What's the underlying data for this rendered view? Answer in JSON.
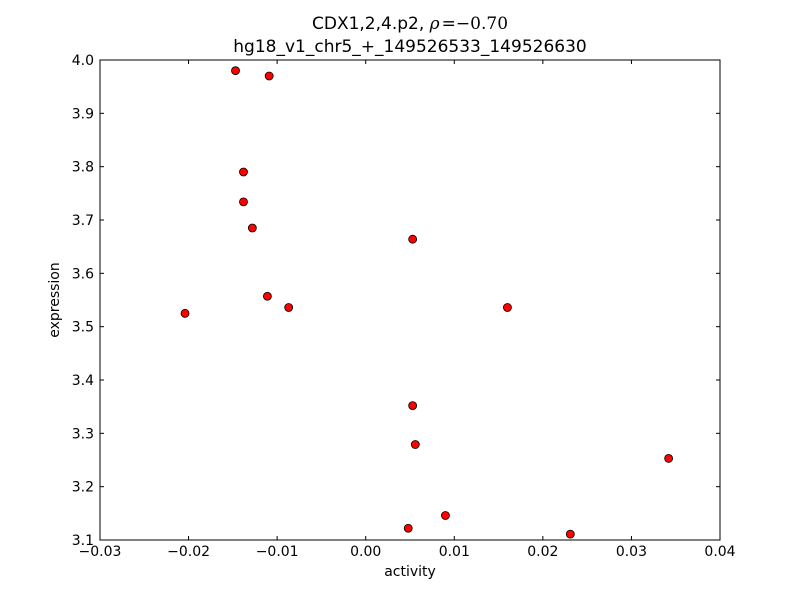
{
  "chart_data": {
    "type": "scatter",
    "title": "CDX1,2,4.p2, ρ = −0.70",
    "title_line1_prefix": "CDX1,2,4.p2, ",
    "title_line1_rho": "ρ",
    "title_line1_value": "=−0.70",
    "subtitle": "hg18_v1_chr5_+_149526533_149526630",
    "xlabel": "activity",
    "ylabel": "expression",
    "xlim": [
      -0.03,
      0.04
    ],
    "ylim": [
      3.1,
      4.0
    ],
    "xticks": [
      -0.03,
      -0.02,
      -0.01,
      0.0,
      0.01,
      0.02,
      0.03,
      0.04
    ],
    "xtick_labels": [
      "−0.03",
      "−0.02",
      "−0.01",
      "0.00",
      "0.01",
      "0.02",
      "0.03",
      "0.04"
    ],
    "yticks": [
      3.1,
      3.2,
      3.3,
      3.4,
      3.5,
      3.6,
      3.7,
      3.8,
      3.9,
      4.0
    ],
    "ytick_labels": [
      "3.1",
      "3.2",
      "3.3",
      "3.4",
      "3.5",
      "3.6",
      "3.7",
      "3.8",
      "3.9",
      "4.0"
    ],
    "grid": false,
    "marker_color": "#ff0000",
    "marker_edge_color": "#000000",
    "points": [
      {
        "x": -0.0147,
        "y": 3.98
      },
      {
        "x": -0.0109,
        "y": 3.97
      },
      {
        "x": -0.0138,
        "y": 3.79
      },
      {
        "x": -0.0138,
        "y": 3.734
      },
      {
        "x": -0.0128,
        "y": 3.685
      },
      {
        "x": 0.0053,
        "y": 3.664
      },
      {
        "x": -0.0111,
        "y": 3.557
      },
      {
        "x": -0.0087,
        "y": 3.536
      },
      {
        "x": -0.0204,
        "y": 3.525
      },
      {
        "x": 0.016,
        "y": 3.536
      },
      {
        "x": 0.0053,
        "y": 3.352
      },
      {
        "x": 0.0056,
        "y": 3.279
      },
      {
        "x": 0.0342,
        "y": 3.253
      },
      {
        "x": 0.009,
        "y": 3.146
      },
      {
        "x": 0.0048,
        "y": 3.122
      },
      {
        "x": 0.0231,
        "y": 3.111
      }
    ]
  }
}
